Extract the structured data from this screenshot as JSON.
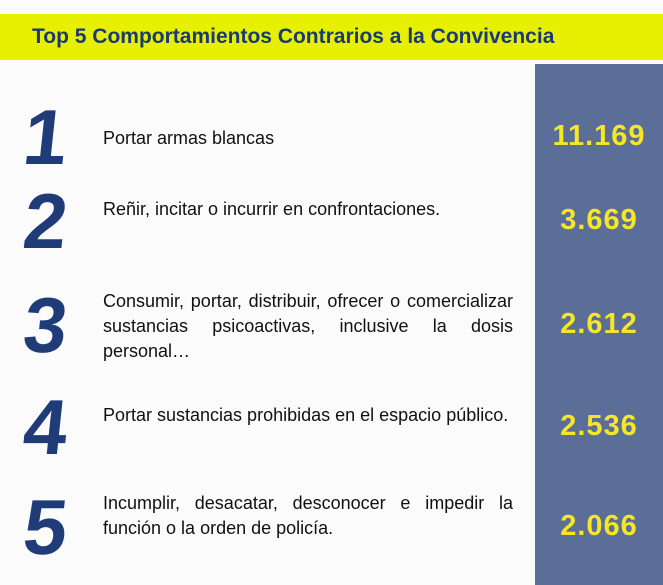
{
  "title": "Top 5 Comportamientos Contrarios a la Convivencia",
  "items": [
    {
      "rank": 1,
      "label": "Portar armas blancas",
      "value": "11.169"
    },
    {
      "rank": 2,
      "label": "Reñir, incitar o incurrir en confrontaciones.",
      "value": "3.669"
    },
    {
      "rank": 3,
      "label": "Consumir, portar, distribuir, ofrecer o comercializar sustancias psicoactivas, inclusive la dosis personal…",
      "value": "2.612"
    },
    {
      "rank": 4,
      "label": "Portar sustancias prohibidas en el espacio público.",
      "value": "2.536"
    },
    {
      "rank": 5,
      "label": "Incumplir, desacatar, desconocer e impedir la función o la orden de policía.",
      "value": "2.066"
    }
  ]
}
